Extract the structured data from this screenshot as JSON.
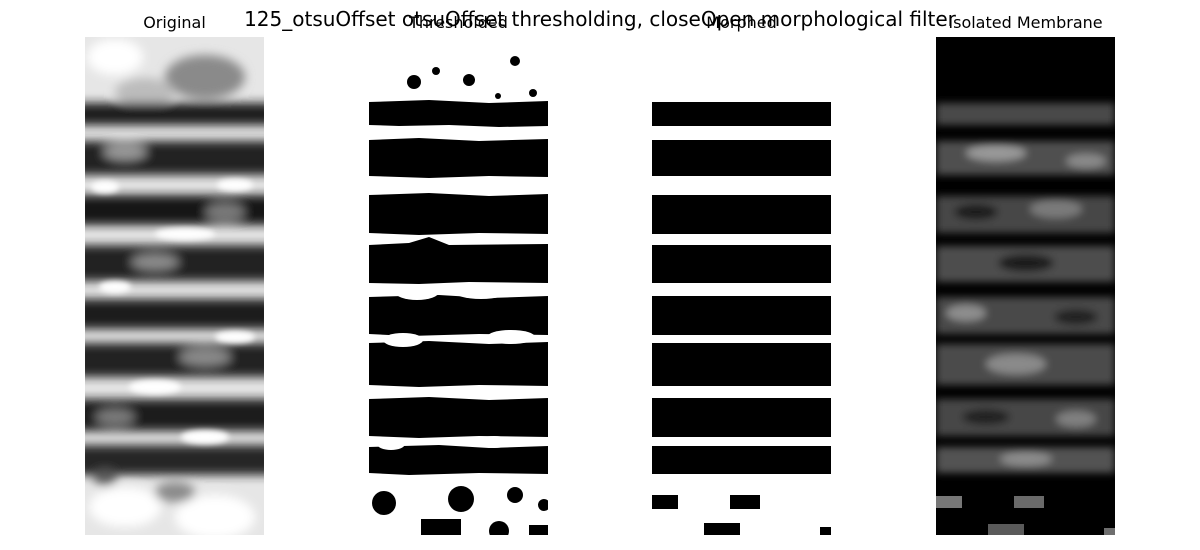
{
  "figure": {
    "suptitle": "125_otsuOffset otsuOffset thresholding, closeOpen morphological filter"
  },
  "panels": [
    {
      "title": "Original",
      "image": "grayscale-micrograph"
    },
    {
      "title": "Thresholded",
      "image": "binary-mask"
    },
    {
      "title": "Morphed",
      "image": "filtered-binary-mask"
    },
    {
      "title": "Isolated Membrane",
      "image": "masked-grayscale"
    }
  ],
  "colors": {
    "background": "#ffffff",
    "black": "#000000",
    "white": "#ffffff"
  }
}
